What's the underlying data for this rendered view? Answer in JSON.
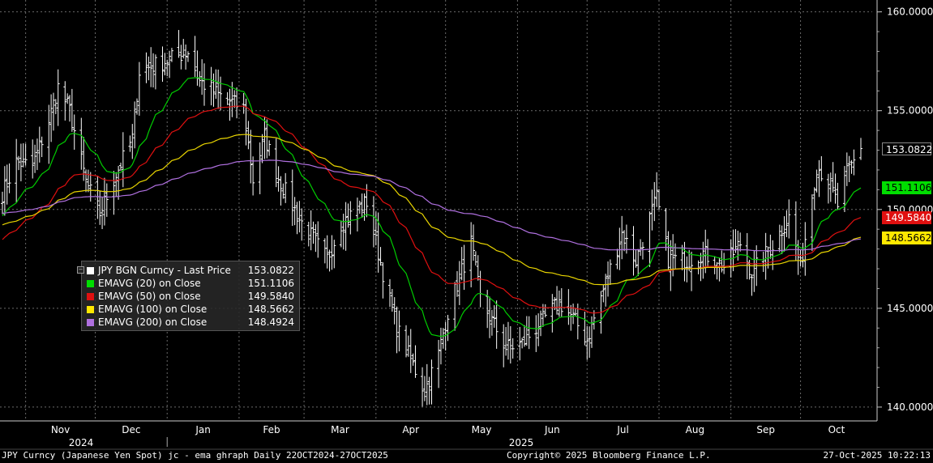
{
  "chart_data": {
    "type": "bar",
    "subtype": "ohlc-with-ema",
    "ylim": [
      139.3,
      160.6
    ],
    "y_ticks": [
      "160.0000",
      "155.0000",
      "150.0000",
      "145.0000",
      "140.0000"
    ],
    "y_tick_values": [
      160,
      155,
      150,
      145,
      140
    ],
    "x_months": [
      "Nov",
      "Dec",
      "Jan",
      "Feb",
      "Mar",
      "Apr",
      "May",
      "Jun",
      "Jul",
      "Aug",
      "Sep",
      "Oct"
    ],
    "x_years": [
      "2024",
      "2025"
    ],
    "price_anchors": [
      [
        "2024-10-22",
        150.8
      ],
      [
        "2024-10-28",
        152.4
      ],
      [
        "2024-11-04",
        152.2
      ],
      [
        "2024-11-11",
        154.5
      ],
      [
        "2024-11-15",
        156.2
      ],
      [
        "2024-11-20",
        155.0
      ],
      [
        "2024-11-27",
        151.4
      ],
      [
        "2024-12-03",
        149.8
      ],
      [
        "2024-12-10",
        151.8
      ],
      [
        "2024-12-17",
        153.6
      ],
      [
        "2024-12-20",
        157.0
      ],
      [
        "2024-12-31",
        157.5
      ],
      [
        "2025-01-10",
        158.0
      ],
      [
        "2025-01-15",
        156.5
      ],
      [
        "2025-01-23",
        155.8
      ],
      [
        "2025-02-03",
        155.1
      ],
      [
        "2025-02-07",
        151.5
      ],
      [
        "2025-02-12",
        153.7
      ],
      [
        "2025-02-18",
        151.6
      ],
      [
        "2025-02-27",
        149.5
      ],
      [
        "2025-03-11",
        147.5
      ],
      [
        "2025-03-17",
        149.3
      ],
      [
        "2025-03-28",
        150.4
      ],
      [
        "2025-04-04",
        146.8
      ],
      [
        "2025-04-10",
        144.0
      ],
      [
        "2025-04-22",
        140.8
      ],
      [
        "2025-04-28",
        142.7
      ],
      [
        "2025-05-02",
        144.8
      ],
      [
        "2025-05-12",
        148.3
      ],
      [
        "2025-05-16",
        145.5
      ],
      [
        "2025-05-27",
        143.0
      ],
      [
        "2025-06-03",
        143.2
      ],
      [
        "2025-06-12",
        144.4
      ],
      [
        "2025-06-19",
        145.3
      ],
      [
        "2025-06-25",
        144.5
      ],
      [
        "2025-07-01",
        143.4
      ],
      [
        "2025-07-09",
        146.3
      ],
      [
        "2025-07-16",
        148.8
      ],
      [
        "2025-07-22",
        147.4
      ],
      [
        "2025-07-31",
        150.6
      ],
      [
        "2025-08-05",
        147.5
      ],
      [
        "2025-08-13",
        147.4
      ],
      [
        "2025-08-20",
        147.8
      ],
      [
        "2025-08-29",
        147.1
      ],
      [
        "2025-09-05",
        148.3
      ],
      [
        "2025-09-10",
        146.8
      ],
      [
        "2025-09-19",
        148.2
      ],
      [
        "2025-09-26",
        149.6
      ],
      [
        "2025-10-01",
        147.1
      ],
      [
        "2025-10-08",
        152.2
      ],
      [
        "2025-10-13",
        151.5
      ],
      [
        "2025-10-17",
        150.2
      ],
      [
        "2025-10-21",
        151.8
      ],
      [
        "2025-10-27",
        153.08
      ]
    ],
    "series": [
      {
        "name": "JPY BGN Curncy - Last Price",
        "last": "153.0822",
        "color": "#ffffff"
      },
      {
        "name": "EMAVG (20)  on Close",
        "last": "151.1106",
        "color": "#00cc00",
        "period": 20
      },
      {
        "name": "EMAVG (50)  on Close",
        "last": "149.5840",
        "color": "#e01010",
        "period": 50
      },
      {
        "name": "EMAVG (100)  on Close",
        "last": "148.5662",
        "color": "#e8d400",
        "period": 100
      },
      {
        "name": "EMAVG (200)  on Close",
        "last": "148.4924",
        "color": "#b070e0",
        "period": 200
      }
    ],
    "badge_colors": {
      "last": {
        "bg": "#000000",
        "fg": "#ffffff",
        "border": "#888888"
      },
      "ema20": {
        "bg": "#00dd00",
        "fg": "#000000"
      },
      "ema50": {
        "bg": "#e01010",
        "fg": "#ffffff"
      },
      "ema100": {
        "bg": "#ffe800",
        "fg": "#000000"
      }
    },
    "grid": true
  },
  "legend": {
    "rows": [
      {
        "label": "JPY BGN Curncy - Last Price",
        "value": "153.0822",
        "color": "#ffffff"
      },
      {
        "label": "EMAVG (20)  on Close",
        "value": "151.1106",
        "color": "#00cc00"
      },
      {
        "label": "EMAVG (50)  on Close",
        "value": "149.5840",
        "color": "#e01010"
      },
      {
        "label": "EMAVG (100)  on Close",
        "value": "148.5662",
        "color": "#e8d400"
      },
      {
        "label": "EMAVG (200)  on Close",
        "value": "148.4924",
        "color": "#b070e0"
      }
    ]
  },
  "footer": {
    "left": "JPY Curncy (Japanese Yen Spot) jc - ema ghraph Daily 22OCT2024-27OCT2025",
    "center": "Copyright© 2025 Bloomberg Finance L.P.",
    "right": "27-Oct-2025 10:22:13"
  },
  "badges": {
    "last": "153.0822",
    "ema20": "151.1106",
    "ema50": "149.5840",
    "ema100": "148.5662"
  }
}
